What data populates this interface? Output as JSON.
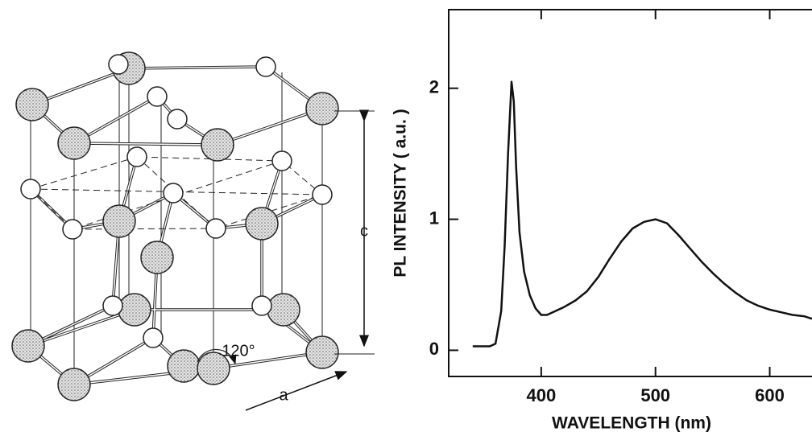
{
  "chart_data": {
    "type": "line",
    "x_label": "WAVELENGTH  (nm)",
    "y_label": "PL INTENSITY ( a.u. )",
    "x": [
      340,
      355,
      360,
      365,
      368,
      371,
      374,
      376,
      378,
      381,
      385,
      390,
      395,
      400,
      405,
      410,
      420,
      430,
      440,
      450,
      460,
      470,
      480,
      490,
      500,
      510,
      520,
      530,
      540,
      550,
      560,
      570,
      580,
      590,
      600,
      610,
      620,
      630,
      637
    ],
    "values": [
      0.03,
      0.03,
      0.05,
      0.3,
      0.8,
      1.5,
      2.05,
      1.9,
      1.4,
      0.9,
      0.6,
      0.42,
      0.32,
      0.27,
      0.27,
      0.29,
      0.33,
      0.38,
      0.45,
      0.56,
      0.7,
      0.83,
      0.93,
      0.98,
      1.0,
      0.97,
      0.88,
      0.78,
      0.68,
      0.59,
      0.51,
      0.44,
      0.38,
      0.34,
      0.31,
      0.29,
      0.27,
      0.26,
      0.24
    ],
    "color": "#111111",
    "xlim": [
      319,
      637
    ],
    "xticks": [
      400,
      500,
      600
    ],
    "ylim": [
      -0.2,
      2.6
    ],
    "yticks": [
      0,
      1,
      2
    ]
  },
  "diagram": {
    "labels": {
      "c": "c",
      "a": "a",
      "angle": "120°"
    }
  }
}
